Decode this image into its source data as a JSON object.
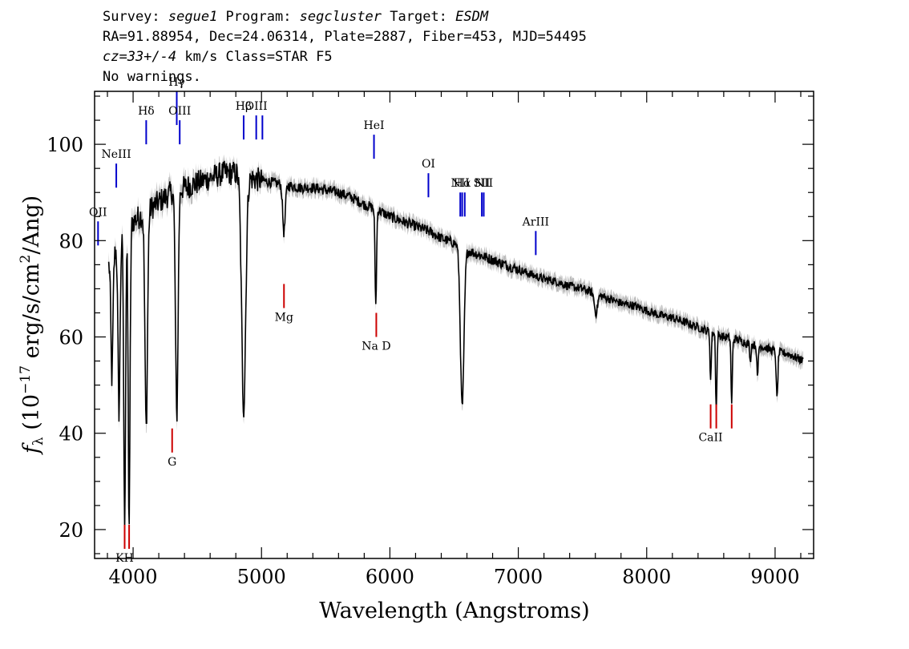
{
  "header": {
    "line1": {
      "survey_label": "Survey: ",
      "survey_value": "segue1",
      "program_label": " Program: ",
      "program_value": "segcluster",
      "target_label": " Target: ",
      "target_value": "ESDM"
    },
    "line2": "RA=91.88954, Dec=24.06314, Plate=2887, Fiber=453, MJD=54495",
    "line3": {
      "cz_value": "cz=33+/-4",
      "rest": " km/s Class=STAR F5"
    },
    "line4": "No warnings."
  },
  "chart_data": {
    "type": "line",
    "xlabel": "Wavelength (Angstroms)",
    "ylabel_prefix": "f",
    "ylabel_sub": "λ",
    "ylabel_unit_a": " (10",
    "ylabel_exp": "−17",
    "ylabel_unit_b": " erg/s/cm",
    "ylabel_sq": "2",
    "ylabel_unit_c": "/Ang)",
    "xlim": [
      3700,
      9300
    ],
    "ylim": [
      14,
      111
    ],
    "xticks": [
      4000,
      5000,
      6000,
      7000,
      8000,
      9000
    ],
    "xtick_labels": [
      "4000",
      "5000",
      "6000",
      "7000",
      "8000",
      "9000"
    ],
    "yticks": [
      20,
      40,
      60,
      80,
      100
    ],
    "ytick_labels": [
      "20",
      "40",
      "60",
      "80",
      "100"
    ],
    "x_minor_step": 200,
    "y_minor_step": 5,
    "series": [
      {
        "style": "flux",
        "color": "#000000",
        "error_color": "#bdbdbd",
        "continuum": [
          [
            3810,
            75
          ],
          [
            3900,
            80
          ],
          [
            4000,
            84
          ],
          [
            4100,
            86
          ],
          [
            4200,
            88
          ],
          [
            4300,
            90
          ],
          [
            4400,
            91
          ],
          [
            4500,
            92
          ],
          [
            4600,
            93
          ],
          [
            4700,
            94
          ],
          [
            4800,
            94
          ],
          [
            4900,
            93
          ],
          [
            5000,
            92.5
          ],
          [
            5100,
            92
          ],
          [
            5200,
            91.5
          ],
          [
            5300,
            91
          ],
          [
            5400,
            91
          ],
          [
            5500,
            90.5
          ],
          [
            5600,
            90
          ],
          [
            5700,
            89
          ],
          [
            5800,
            87.5
          ],
          [
            5900,
            86.5
          ],
          [
            6000,
            85
          ],
          [
            6100,
            84
          ],
          [
            6200,
            83
          ],
          [
            6300,
            82
          ],
          [
            6400,
            80.5
          ],
          [
            6500,
            79.5
          ],
          [
            6600,
            78
          ],
          [
            6700,
            77
          ],
          [
            6800,
            76
          ],
          [
            6900,
            75
          ],
          [
            7000,
            74
          ],
          [
            7100,
            73
          ],
          [
            7200,
            72
          ],
          [
            7300,
            71.5
          ],
          [
            7400,
            70.5
          ],
          [
            7500,
            70
          ],
          [
            7600,
            69
          ],
          [
            7700,
            68
          ],
          [
            7800,
            67
          ],
          [
            7900,
            66.5
          ],
          [
            8000,
            65.5
          ],
          [
            8100,
            64.5
          ],
          [
            8200,
            64
          ],
          [
            8300,
            63
          ],
          [
            8400,
            62
          ],
          [
            8500,
            61
          ],
          [
            8600,
            60
          ],
          [
            8700,
            59.5
          ],
          [
            8800,
            58.5
          ],
          [
            8900,
            58
          ],
          [
            9000,
            57
          ],
          [
            9100,
            56.5
          ],
          [
            9220,
            55
          ]
        ],
        "absorption_lines": [
          [
            3835,
            25,
            8
          ],
          [
            3890,
            35,
            8
          ],
          [
            3934,
            60,
            7
          ],
          [
            3969,
            62,
            7
          ],
          [
            4102,
            45,
            10
          ],
          [
            4340,
            47,
            10
          ],
          [
            4861,
            48,
            16
          ],
          [
            5175,
            10,
            10
          ],
          [
            5890,
            20,
            6
          ],
          [
            6563,
            33,
            14
          ],
          [
            7605,
            4,
            12
          ],
          [
            8498,
            10,
            5
          ],
          [
            8542,
            16,
            5
          ],
          [
            8662,
            14,
            5
          ],
          [
            8807,
            4,
            4
          ],
          [
            8863,
            7,
            5
          ],
          [
            9015,
            10,
            6
          ]
        ]
      }
    ],
    "emission_markers": [
      {
        "label": "OII",
        "x": 3727,
        "y0": 79,
        "y1": 84,
        "color": "#0000cc"
      },
      {
        "label": "NeIII",
        "x": 3869,
        "y0": 91,
        "y1": 96,
        "color": "#0000cc"
      },
      {
        "label": "Hδ",
        "x": 4102,
        "y0": 100,
        "y1": 105,
        "color": "#0000cc"
      },
      {
        "label": "Hγ",
        "x": 4340,
        "y0": 104,
        "y1": 111,
        "color": "#0000cc"
      },
      {
        "label": "OIII",
        "x": 4363,
        "y0": 100,
        "y1": 105,
        "color": "#0000cc"
      },
      {
        "label": "Hβ",
        "x": 4861,
        "y0": 101,
        "y1": 106,
        "color": "#0000cc"
      },
      {
        "label": "OIII",
        "x": 4959,
        "y0": 101,
        "y1": 106,
        "color": "#0000cc"
      },
      {
        "label": "",
        "x": 5007,
        "y0": 101,
        "y1": 106,
        "color": "#0000cc"
      },
      {
        "label": "HeI",
        "x": 5876,
        "y0": 97,
        "y1": 102,
        "color": "#0000cc"
      },
      {
        "label": "OI",
        "x": 6300,
        "y0": 89,
        "y1": 94,
        "color": "#0000cc"
      },
      {
        "label": "NII",
        "x": 6548,
        "y0": 85,
        "y1": 90,
        "color": "#0000cc"
      },
      {
        "label": "Hα",
        "x": 6563,
        "y0": 85,
        "y1": 90,
        "color": "#0000cc"
      },
      {
        "label": "",
        "x": 6583,
        "y0": 85,
        "y1": 90,
        "color": "#0000cc"
      },
      {
        "label": "SII",
        "x": 6716,
        "y0": 85,
        "y1": 90,
        "color": "#0000cc"
      },
      {
        "label": "NII",
        "x": 6731,
        "y0": 85,
        "y1": 90,
        "color": "#0000cc"
      },
      {
        "label": "ArIII",
        "x": 7136,
        "y0": 77,
        "y1": 82,
        "color": "#0000cc"
      }
    ],
    "absorption_markers": [
      {
        "label": "KH",
        "x": 3934,
        "y0": 16,
        "y1": 21,
        "color": "#cc0000"
      },
      {
        "label": "",
        "x": 3969,
        "y0": 16,
        "y1": 21,
        "color": "#cc0000"
      },
      {
        "label": "G",
        "x": 4304,
        "y0": 36,
        "y1": 41,
        "color": "#cc0000"
      },
      {
        "label": "Mg",
        "x": 5175,
        "y0": 66,
        "y1": 71,
        "color": "#cc0000"
      },
      {
        "label": "Na D",
        "x": 5894,
        "y0": 60,
        "y1": 65,
        "color": "#cc0000"
      },
      {
        "label": "CaII",
        "x": 8498,
        "y0": 41,
        "y1": 46,
        "color": "#cc0000"
      },
      {
        "label": "",
        "x": 8542,
        "y0": 41,
        "y1": 46,
        "color": "#cc0000"
      },
      {
        "label": "",
        "x": 8662,
        "y0": 41,
        "y1": 46,
        "color": "#cc0000"
      }
    ]
  }
}
